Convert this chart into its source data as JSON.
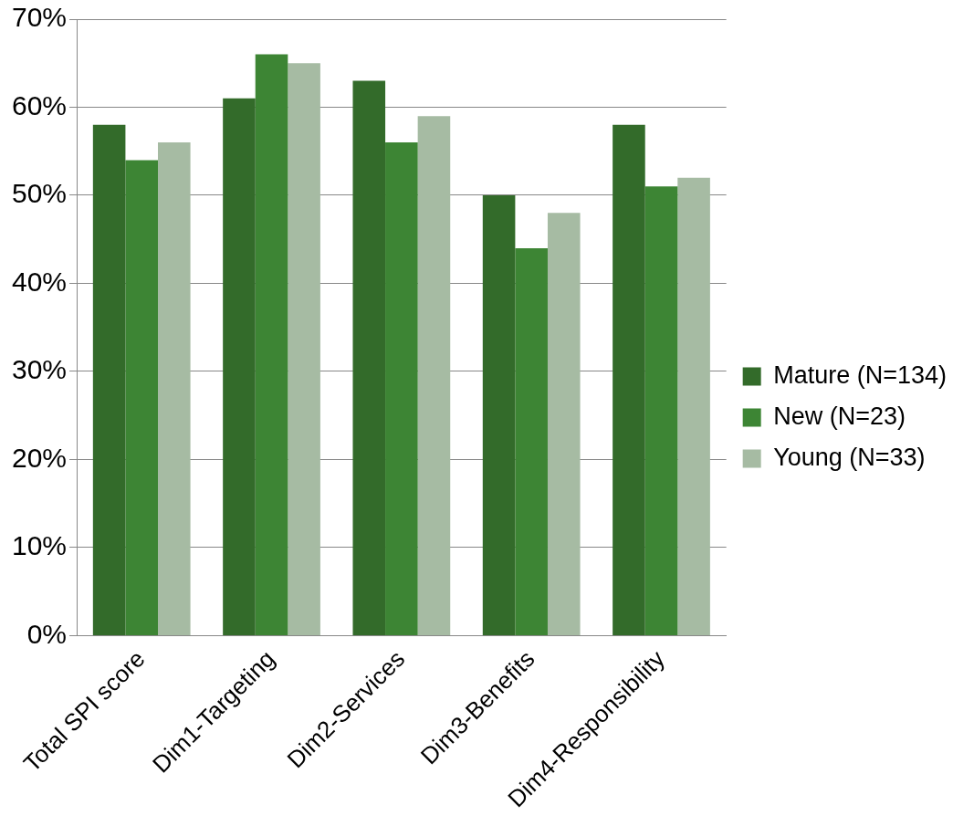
{
  "chart_data": {
    "type": "bar",
    "categories": [
      "Total SPI score",
      "Dim1-Targeting",
      "Dim2-Services",
      "Dim3-Benefits",
      "Dim4-Responsibility"
    ],
    "series": [
      {
        "name": "Mature (N=134)",
        "color": "#336b2a",
        "values": [
          58,
          61,
          63,
          50,
          58
        ]
      },
      {
        "name": "New (N=23)",
        "color": "#3d8534",
        "values": [
          54,
          66,
          56,
          44,
          51
        ]
      },
      {
        "name": "Young (N=33)",
        "color": "#a6bba3",
        "values": [
          56,
          65,
          59,
          48,
          52
        ]
      }
    ],
    "ylim": [
      0,
      70
    ],
    "yticks": [
      {
        "value": 0,
        "label": "0%"
      },
      {
        "value": 10,
        "label": "10%"
      },
      {
        "value": 20,
        "label": "20%"
      },
      {
        "value": 30,
        "label": "30%"
      },
      {
        "value": 40,
        "label": "40%"
      },
      {
        "value": 50,
        "label": "50%"
      },
      {
        "value": 60,
        "label": "60%"
      },
      {
        "value": 70,
        "label": "70%"
      }
    ],
    "grid": "y",
    "legend": "right"
  }
}
